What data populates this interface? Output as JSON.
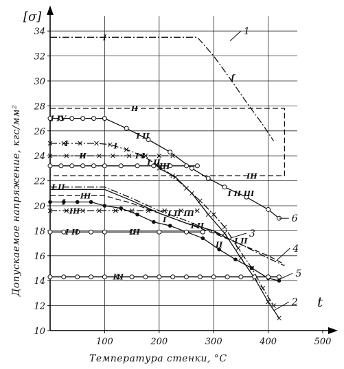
{
  "chart_data": {
    "type": "line",
    "ylabel_top": "[σ]",
    "ylabel": "Допускаемое напряжение, кгс/мм²",
    "xlabel": "Температура стенки, °C",
    "x_axis_letter": "t",
    "xlim": [
      0,
      500
    ],
    "ylim": [
      10,
      36
    ],
    "xticks": [
      100,
      200,
      300,
      400,
      500
    ],
    "yticks": [
      10,
      12,
      14,
      16,
      18,
      20,
      22,
      24,
      26,
      28,
      30,
      32,
      34
    ],
    "grid": true,
    "series": [
      {
        "name": "1",
        "style": "dashdot",
        "marker": "none",
        "points": [
          [
            0,
            33.5
          ],
          [
            270,
            33.5
          ],
          [
            300,
            32
          ],
          [
            330,
            30.2
          ],
          [
            360,
            28.3
          ],
          [
            390,
            26.5
          ],
          [
            410,
            25.2
          ]
        ],
        "labels": [
          {
            "text": "I",
            "x": 100,
            "y": 33.5
          },
          {
            "text": "f",
            "x": 335,
            "y": 30.3
          }
        ]
      },
      {
        "name": "",
        "style": "dashed",
        "marker": "none",
        "points": [
          [
            0,
            27.8
          ],
          [
            430,
            27.8
          ],
          [
            430,
            22.4
          ],
          [
            0,
            22.4
          ]
        ],
        "labels": [
          {
            "text": "II",
            "x": 155,
            "y": 27.8
          },
          {
            "text": "III",
            "x": 370,
            "y": 22.4
          }
        ]
      },
      {
        "name": "6",
        "style": "solid",
        "marker": "circle-open",
        "points": [
          [
            0,
            27
          ],
          [
            20,
            27
          ],
          [
            40,
            27
          ],
          [
            60,
            27
          ],
          [
            80,
            27
          ],
          [
            100,
            27
          ],
          [
            140,
            26.2
          ],
          [
            180,
            25.3
          ],
          [
            220,
            24.3
          ],
          [
            260,
            23
          ],
          [
            290,
            22.2
          ],
          [
            320,
            21.5
          ],
          [
            360,
            20.7
          ],
          [
            400,
            19.7
          ],
          [
            420,
            19
          ]
        ],
        "labels": [
          {
            "text": "I IV",
            "x": 15,
            "y": 27
          },
          {
            "text": "I II",
            "x": 170,
            "y": 25.6
          },
          {
            "text": "I II III",
            "x": 350,
            "y": 21
          }
        ]
      },
      {
        "name": "",
        "style": "dashdot",
        "marker": "cross",
        "points": [
          [
            0,
            25
          ],
          [
            25,
            25
          ],
          [
            55,
            25
          ],
          [
            85,
            25
          ],
          [
            110,
            24.9
          ],
          [
            140,
            24.5
          ],
          [
            170,
            24
          ],
          [
            195,
            23.3
          ],
          [
            225,
            22.4
          ],
          [
            250,
            21.4
          ],
          [
            275,
            20.4
          ],
          [
            300,
            19.3
          ],
          [
            320,
            18.3
          ],
          [
            345,
            16.6
          ],
          [
            370,
            15
          ],
          [
            390,
            13.4
          ],
          [
            410,
            12
          ]
        ],
        "labels": [
          {
            "text": "I",
            "x": 30,
            "y": 25
          },
          {
            "text": "I",
            "x": 120,
            "y": 24.8
          },
          {
            "text": "I II",
            "x": 190,
            "y": 23.5
          }
        ]
      },
      {
        "name": "2",
        "style": "solid",
        "marker": "cross",
        "points": [
          [
            200,
            23
          ],
          [
            230,
            22.3
          ],
          [
            260,
            21
          ],
          [
            290,
            19.3
          ],
          [
            320,
            17.8
          ],
          [
            350,
            15.8
          ],
          [
            375,
            14.2
          ],
          [
            400,
            12.3
          ],
          [
            420,
            11
          ]
        ]
      },
      {
        "name": "",
        "style": "dashdot",
        "marker": "cross",
        "points": [
          [
            0,
            24
          ],
          [
            30,
            24
          ],
          [
            60,
            24
          ],
          [
            90,
            24
          ],
          [
            115,
            24
          ],
          [
            145,
            24
          ],
          [
            175,
            24
          ],
          [
            200,
            24
          ],
          [
            225,
            24
          ]
        ],
        "labels": [
          {
            "text": "II",
            "x": 60,
            "y": 24
          },
          {
            "text": "I I",
            "x": 165,
            "y": 24
          }
        ]
      },
      {
        "name": "",
        "style": "solid",
        "marker": "circle-open",
        "points": [
          [
            0,
            23.2
          ],
          [
            20,
            23.2
          ],
          [
            40,
            23.2
          ],
          [
            60,
            23.2
          ],
          [
            80,
            23.2
          ],
          [
            100,
            23.2
          ],
          [
            130,
            23.2
          ],
          [
            160,
            23.2
          ],
          [
            190,
            23.2
          ],
          [
            220,
            23.2
          ],
          [
            250,
            23.2
          ],
          [
            270,
            23.2
          ]
        ],
        "labels": [
          {
            "text": "III",
            "x": 210,
            "y": 23.2
          }
        ]
      },
      {
        "name": "3",
        "style": "dashdot",
        "marker": "none",
        "points": [
          [
            0,
            21.5
          ],
          [
            100,
            21.5
          ],
          [
            150,
            20.6
          ],
          [
            200,
            19.6
          ],
          [
            250,
            18.8
          ],
          [
            300,
            17.9
          ],
          [
            350,
            16.9
          ],
          [
            400,
            15.8
          ],
          [
            430,
            15.2
          ]
        ],
        "labels": [
          {
            "text": "I II",
            "x": 15,
            "y": 21.5
          },
          {
            "text": "I II III",
            "x": 240,
            "y": 19.4
          }
        ]
      },
      {
        "name": "4",
        "style": "dashed",
        "marker": "none",
        "points": [
          [
            0,
            20.8
          ],
          [
            100,
            20.8
          ],
          [
            150,
            20.2
          ],
          [
            200,
            19.4
          ],
          [
            250,
            18.6
          ],
          [
            300,
            17.8
          ],
          [
            350,
            16.9
          ],
          [
            400,
            16
          ],
          [
            430,
            15.3
          ]
        ],
        "labels": [
          {
            "text": "III",
            "x": 65,
            "y": 20.8
          },
          {
            "text": "I II",
            "x": 350,
            "y": 17.2
          }
        ]
      },
      {
        "name": "",
        "style": "solid",
        "marker": "none",
        "points": [
          [
            0,
            21.3
          ],
          [
            100,
            21.3
          ],
          [
            150,
            20.4
          ],
          [
            200,
            19.4
          ],
          [
            250,
            18.6
          ],
          [
            300,
            18
          ],
          [
            330,
            17.3
          ]
        ],
        "labels": [
          {
            "text": "I II",
            "x": 270,
            "y": 18.4
          }
        ]
      },
      {
        "name": "",
        "style": "solid",
        "marker": "circle-filled",
        "points": [
          [
            0,
            20.3
          ],
          [
            25,
            20.3
          ],
          [
            50,
            20.3
          ],
          [
            75,
            20.3
          ],
          [
            100,
            20
          ],
          [
            130,
            19.8
          ],
          [
            160,
            19.3
          ],
          [
            190,
            18.7
          ],
          [
            220,
            18.4
          ],
          [
            250,
            17.9
          ],
          [
            280,
            17.4
          ],
          [
            310,
            16.5
          ],
          [
            340,
            15.7
          ],
          [
            370,
            15
          ],
          [
            400,
            14.2
          ],
          [
            420,
            14
          ]
        ],
        "labels": [
          {
            "text": "I",
            "x": 25,
            "y": 20.3
          },
          {
            "text": "I",
            "x": 210,
            "y": 18.9
          },
          {
            "text": "II",
            "x": 310,
            "y": 16.9
          }
        ]
      },
      {
        "name": "",
        "style": "dashdot",
        "marker": "cross",
        "points": [
          [
            0,
            19.6
          ],
          [
            30,
            19.6
          ],
          [
            60,
            19.6
          ],
          [
            90,
            19.6
          ],
          [
            120,
            19.6
          ],
          [
            150,
            19.6
          ],
          [
            180,
            19.6
          ],
          [
            210,
            19.6
          ],
          [
            240,
            19.6
          ],
          [
            270,
            19.6
          ]
        ],
        "labels": [
          {
            "text": "III",
            "x": 45,
            "y": 19.6
          }
        ]
      },
      {
        "name": "5",
        "style": "solid",
        "marker": "circle-open",
        "points": [
          [
            0,
            17.9
          ],
          [
            25,
            17.9
          ],
          [
            50,
            17.9
          ],
          [
            75,
            17.9
          ],
          [
            100,
            17.9
          ],
          [
            150,
            17.9
          ],
          [
            200,
            17.9
          ],
          [
            250,
            17.9
          ],
          [
            280,
            17.9
          ]
        ],
        "labels": [
          {
            "text": "I II",
            "x": 40,
            "y": 17.9
          },
          {
            "text": "III",
            "x": 155,
            "y": 17.9
          }
        ]
      },
      {
        "name": "",
        "style": "solid",
        "marker": "circle-open",
        "points": [
          [
            0,
            14.3
          ],
          [
            25,
            14.3
          ],
          [
            50,
            14.3
          ],
          [
            75,
            14.3
          ],
          [
            100,
            14.3
          ],
          [
            125,
            14.3
          ],
          [
            150,
            14.3
          ],
          [
            175,
            14.3
          ],
          [
            200,
            14.3
          ],
          [
            225,
            14.3
          ],
          [
            250,
            14.3
          ],
          [
            275,
            14.3
          ],
          [
            300,
            14.3
          ],
          [
            325,
            14.3
          ],
          [
            350,
            14.3
          ],
          [
            375,
            14.3
          ],
          [
            400,
            14.3
          ],
          [
            420,
            14.3
          ]
        ],
        "labels": [
          {
            "text": "III",
            "x": 125,
            "y": 14.3
          }
        ]
      }
    ]
  }
}
